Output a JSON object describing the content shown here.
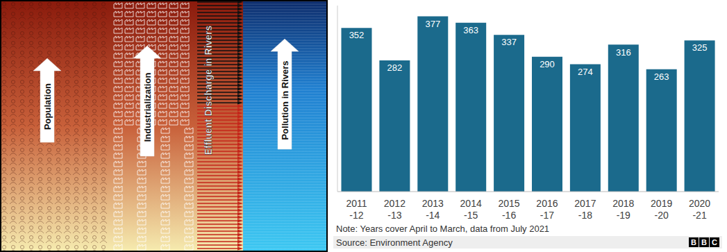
{
  "diagram": {
    "labels": [
      "Population",
      "Industrialization",
      "Effluent Discharge in Rivers",
      "Pollution in Rivers"
    ]
  },
  "chart_data": {
    "type": "bar",
    "categories": [
      "2011-12",
      "2012-13",
      "2013-14",
      "2014-15",
      "2015-16",
      "2016-17",
      "2017-18",
      "2018-19",
      "2019-20",
      "2020-21"
    ],
    "values": [
      352,
      282,
      377,
      363,
      337,
      290,
      274,
      316,
      263,
      325
    ],
    "color": "#1b6a8c",
    "ylim": [
      0,
      400
    ],
    "grid": false,
    "data_labels": true,
    "tick_labels": "x",
    "note": "Note: Years cover April to March, data from July 2021",
    "source": "Source: Environment Agency",
    "logo": "BBC"
  }
}
